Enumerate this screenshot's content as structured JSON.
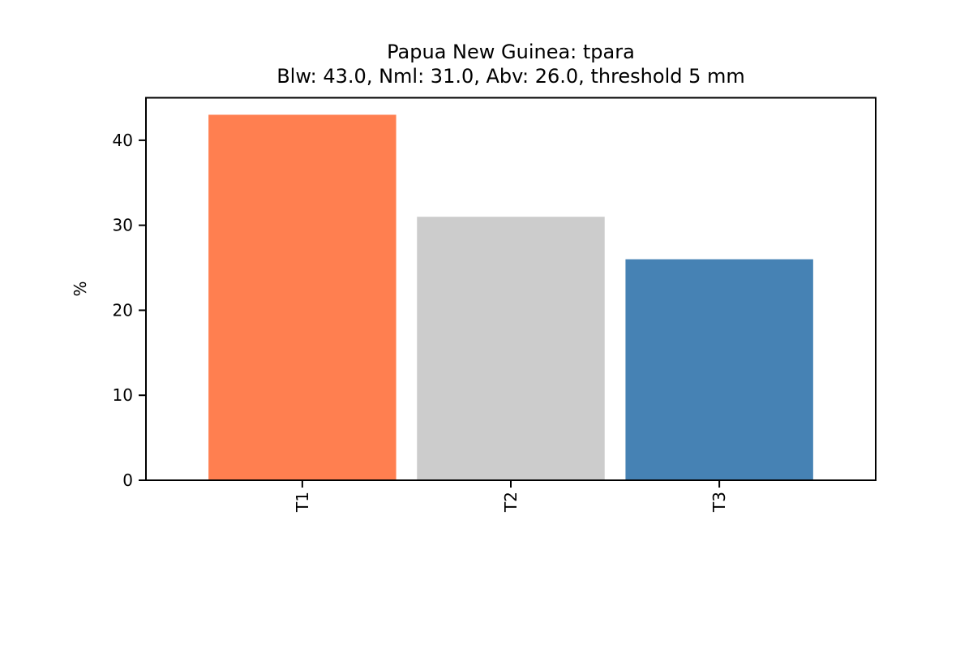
{
  "chart_data": {
    "type": "bar",
    "title": "Papua New Guinea: tpara",
    "subtitle": "Blw: 43.0, Nml: 31.0, Abv: 26.0, threshold 5 mm",
    "categories": [
      "T1",
      "T2",
      "T3"
    ],
    "values": [
      43.0,
      31.0,
      26.0
    ],
    "colors": [
      "#ff7f50",
      "#cccccc",
      "#4682b4"
    ],
    "xlabel": "",
    "ylabel": "%",
    "ylim": [
      0,
      45
    ],
    "yticks": [
      0,
      10,
      20,
      30,
      40
    ],
    "ytick_labels": [
      "0",
      "10",
      "20",
      "30",
      "40"
    ],
    "grid": false,
    "legend": "none"
  }
}
